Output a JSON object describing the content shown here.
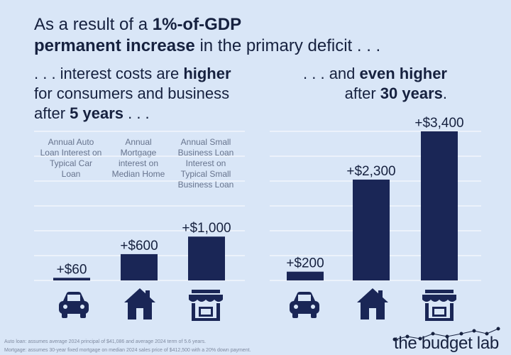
{
  "headline": {
    "line1_pre": "As a result of a ",
    "line1_bold": "1%-of-GDP",
    "line2_bold": "permanent increase",
    "line2_post": " in the primary deficit . . ."
  },
  "left_subtitle": {
    "line1_pre": ". . . interest costs are ",
    "line1_bold": "higher",
    "line2": "for consumers and business",
    "line3_pre": "after ",
    "line3_bold": "5 years",
    "line3_post": " . . ."
  },
  "right_subtitle": {
    "line1_pre": ". . . and ",
    "line1_bold": "even higher",
    "line2_pre": "after ",
    "line2_bold": "30 years",
    "line2_post": "."
  },
  "category_labels": [
    "Annual Auto Loan Interest on Typical Car Loan",
    "Annual Mortgage interest on Median Home",
    "Annual Small Business Loan Interest on Typical Small Business Loan"
  ],
  "chart_data": [
    {
      "type": "bar",
      "panel": "after 5 years",
      "categories": [
        "Annual Auto Loan Interest on Typical Car Loan",
        "Annual Mortgage interest on Median Home",
        "Annual Small Business Loan Interest on Typical Small Business Loan"
      ],
      "values": [
        60,
        600,
        1000
      ],
      "data_labels": [
        "+$60",
        "+$600",
        "+$1,000"
      ],
      "ylim": [
        0,
        3400
      ],
      "grid": true
    },
    {
      "type": "bar",
      "panel": "after 30 years",
      "categories": [
        "Annual Auto Loan Interest on Typical Car Loan",
        "Annual Mortgage interest on Median Home",
        "Annual Small Business Loan Interest on Typical Small Business Loan"
      ],
      "values": [
        200,
        2300,
        3400
      ],
      "data_labels": [
        "+$200",
        "+$2,300",
        "+$3,400"
      ],
      "ylim": [
        0,
        3400
      ],
      "grid": true
    }
  ],
  "icons": [
    "car-icon",
    "house-icon",
    "storefront-icon"
  ],
  "colors": {
    "background": "#d9e6f7",
    "bar": "#1a2656",
    "text": "#16213f",
    "label_gray": "#66738d",
    "grid": "#ffffff"
  },
  "footnote": {
    "line1": "Auto loan: assumes average 2024 principal of $41,086 and average 2024 term of 5.6 years.",
    "line2": "Mortgage: assumes 30-year fixed mortgage on median 2024 sales price of $412,500 with a 20% down payment."
  },
  "logo": "the budget lab"
}
